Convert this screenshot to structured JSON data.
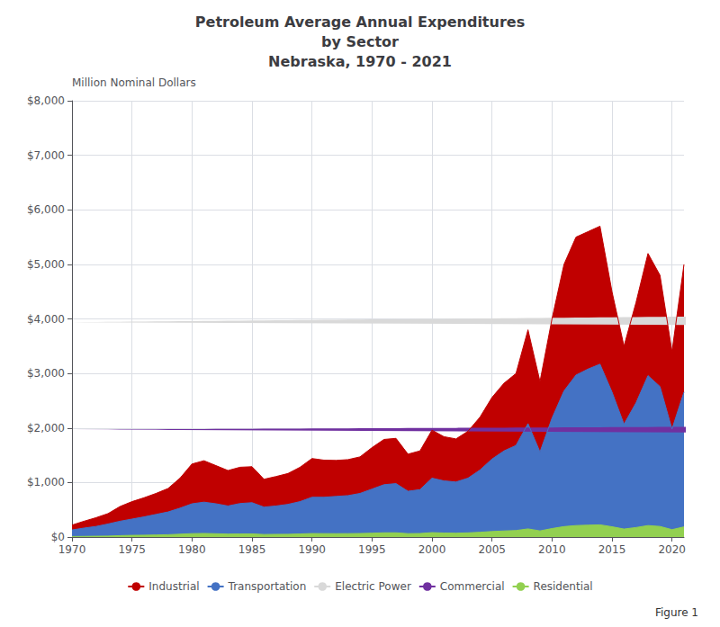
{
  "chart_data": {
    "type": "area",
    "title": "Petroleum Average Annual Expenditures\nby Sector\nNebraska, 1970 - 2021",
    "ylabel": "Million Nominal Dollars",
    "x": [
      1970,
      1971,
      1972,
      1973,
      1974,
      1975,
      1976,
      1977,
      1978,
      1979,
      1980,
      1981,
      1982,
      1983,
      1984,
      1985,
      1986,
      1987,
      1988,
      1989,
      1990,
      1991,
      1992,
      1993,
      1994,
      1995,
      1996,
      1997,
      1998,
      1999,
      2000,
      2001,
      2002,
      2003,
      2004,
      2005,
      2006,
      2007,
      2008,
      2009,
      2010,
      2011,
      2012,
      2013,
      2014,
      2015,
      2016,
      2017,
      2018,
      2019,
      2020,
      2021
    ],
    "series": [
      {
        "name": "Industrial",
        "color": "#c00000",
        "values": [
          220,
          290,
          355,
          430,
          560,
          650,
          720,
          800,
          890,
          1080,
          1340,
          1400,
          1310,
          1220,
          1280,
          1290,
          1060,
          1110,
          1165,
          1280,
          1440,
          1410,
          1405,
          1420,
          1470,
          1640,
          1790,
          1810,
          1520,
          1580,
          1960,
          1840,
          1800,
          1940,
          2200,
          2560,
          2820,
          3000,
          3800,
          2850,
          4000,
          5000,
          5500,
          5600,
          5700,
          4500,
          3500,
          4300,
          5200,
          4800,
          3400,
          5000
        ]
      },
      {
        "name": "Transportation",
        "color": "#4472c4",
        "values": [
          130,
          165,
          195,
          240,
          290,
          330,
          370,
          415,
          460,
          530,
          610,
          640,
          610,
          570,
          615,
          630,
          550,
          570,
          600,
          650,
          730,
          730,
          745,
          760,
          800,
          880,
          960,
          980,
          840,
          870,
          1080,
          1030,
          1010,
          1080,
          1230,
          1430,
          1580,
          1680,
          2080,
          1560,
          2180,
          2680,
          2970,
          3080,
          3170,
          2660,
          2070,
          2460,
          2960,
          2760,
          1980,
          2660
        ]
      },
      {
        "name": "Electric Power",
        "color": "#d9d9d9",
        "stacked": true,
        "values": [
          3,
          3,
          3,
          4,
          7,
          6,
          6,
          6,
          7,
          8,
          10,
          10,
          9,
          8,
          8,
          8,
          7,
          7,
          7,
          8,
          8,
          8,
          8,
          8,
          8,
          9,
          10,
          10,
          8,
          8,
          10,
          9,
          9,
          9,
          10,
          11,
          11,
          11,
          14,
          10,
          13,
          16,
          17,
          17,
          18,
          13,
          10,
          13,
          16,
          15,
          12,
          16
        ]
      },
      {
        "name": "Commercial",
        "color": "#7030a0",
        "stacked": true,
        "values": [
          15,
          18,
          22,
          27,
          40,
          48,
          53,
          60,
          67,
          82,
          98,
          103,
          94,
          85,
          88,
          90,
          73,
          77,
          80,
          88,
          100,
          97,
          97,
          98,
          101,
          111,
          121,
          121,
          97,
          101,
          126,
          115,
          111,
          120,
          137,
          159,
          175,
          187,
          233,
          175,
          243,
          299,
          328,
          339,
          350,
          295,
          229,
          272,
          329,
          303,
          212,
          291
        ]
      },
      {
        "name": "Residential",
        "color": "#92d050",
        "stacked": true,
        "values": [
          10,
          12,
          15,
          18,
          26,
          31,
          34,
          38,
          43,
          52,
          63,
          66,
          61,
          55,
          57,
          58,
          47,
          50,
          51,
          57,
          64,
          63,
          62,
          63,
          65,
          71,
          78,
          78,
          63,
          65,
          81,
          74,
          71,
          77,
          88,
          102,
          112,
          120,
          150,
          113,
          156,
          192,
          211,
          218,
          224,
          189,
          147,
          175,
          211,
          195,
          136,
          187
        ]
      }
    ],
    "xlim": [
      1970,
      2021
    ],
    "xticks": [
      1970,
      1975,
      1980,
      1985,
      1990,
      1995,
      2000,
      2005,
      2010,
      2015,
      2020
    ],
    "ylim": [
      0,
      8000
    ],
    "yticks": [
      {
        "value": 0,
        "label": "$0"
      },
      {
        "value": 1000,
        "label": "$1,000"
      },
      {
        "value": 2000,
        "label": "$2,000"
      },
      {
        "value": 3000,
        "label": "$3,000"
      },
      {
        "value": 4000,
        "label": "$4,000"
      },
      {
        "value": 5000,
        "label": "$5,000"
      },
      {
        "value": 6000,
        "label": "$6,000"
      },
      {
        "value": 7000,
        "label": "$7,000"
      },
      {
        "value": 8000,
        "label": "$8,000"
      }
    ],
    "grid": true,
    "legend": "bottom",
    "annotations": [
      "Figure 1"
    ]
  }
}
